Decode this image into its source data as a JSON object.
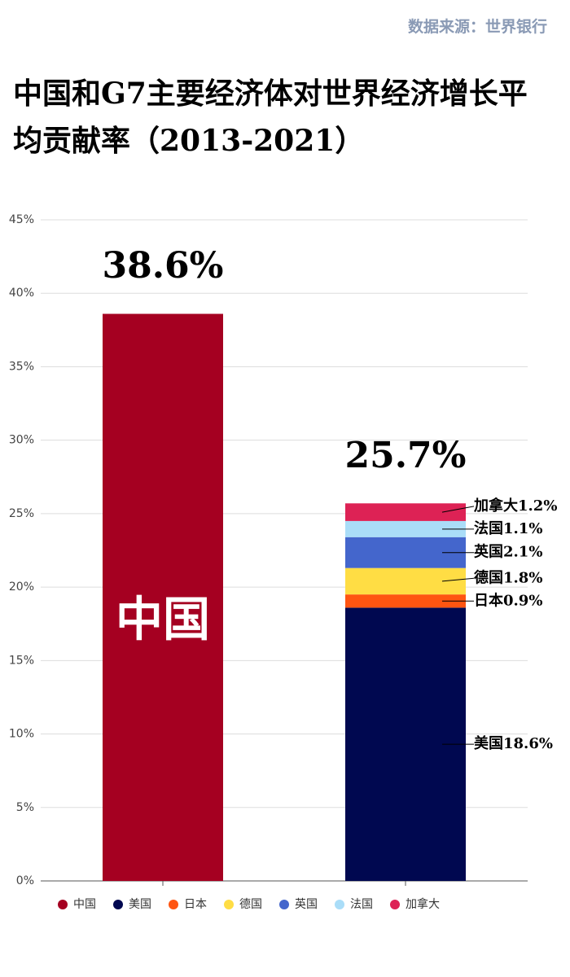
{
  "chart_data": {
    "type": "stacked-bar",
    "source": "数据来源：世界银行",
    "title": "中国和G7主要经济体对世界经济增长平均贡献率（2013-2021）",
    "categories": [
      "中国",
      null
    ],
    "series": [
      {
        "name": "中国",
        "color": "#a50021",
        "values": [
          38.6,
          null
        ],
        "value_labels": [
          null,
          null
        ]
      },
      {
        "name": "美国",
        "color": "#000850",
        "values": [
          null,
          18.6
        ],
        "value_labels": [
          null,
          "美国18.6%"
        ]
      },
      {
        "name": "日本",
        "color": "#ff5511",
        "values": [
          null,
          0.9
        ],
        "value_labels": [
          null,
          "日本0.9%"
        ]
      },
      {
        "name": "德国",
        "color": "#ffdd44",
        "values": [
          null,
          1.8
        ],
        "value_labels": [
          null,
          "德国1.8%"
        ]
      },
      {
        "name": "英国",
        "color": "#4466cc",
        "values": [
          null,
          2.1
        ],
        "value_labels": [
          null,
          "英国2.1%"
        ]
      },
      {
        "name": "法国",
        "color": "#aaddf8",
        "values": [
          null,
          1.1
        ],
        "value_labels": [
          null,
          "法国1.1%"
        ]
      },
      {
        "name": "加拿大",
        "color": "#dd2255",
        "values": [
          null,
          1.2
        ],
        "value_labels": [
          null,
          "加拿大1.2%"
        ]
      }
    ],
    "totals": [
      38.6,
      25.7
    ],
    "total_labels": [
      "38.6%",
      "25.7%"
    ],
    "ylim": [
      0,
      45
    ],
    "yticks": [
      {
        "value": 0,
        "label": "0%"
      },
      {
        "value": 5,
        "label": "5%"
      },
      {
        "value": 10,
        "label": "10%"
      },
      {
        "value": 15,
        "label": "15%"
      },
      {
        "value": 20,
        "label": "20%"
      },
      {
        "value": 25,
        "label": "25%"
      },
      {
        "value": 30,
        "label": "30%"
      },
      {
        "value": 35,
        "label": "35%"
      },
      {
        "value": 40,
        "label": "40%"
      },
      {
        "value": 45,
        "label": "45%"
      }
    ],
    "grid": true
  }
}
